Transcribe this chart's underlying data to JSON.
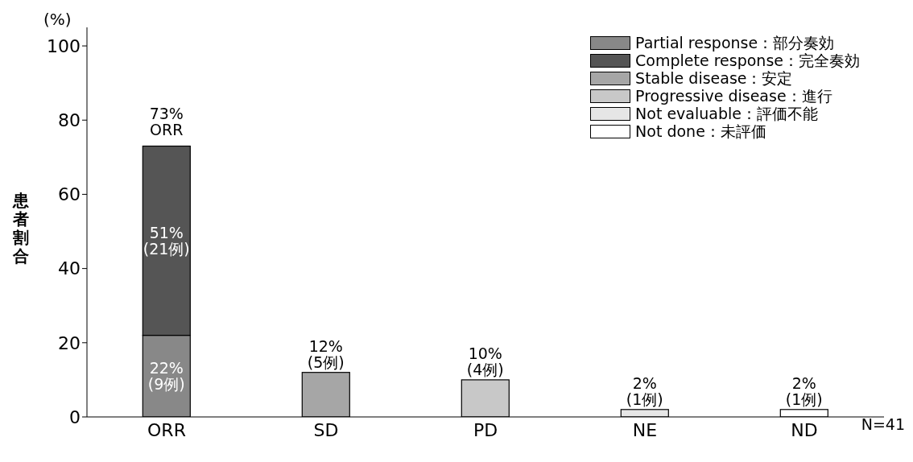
{
  "chart_data": {
    "type": "bar",
    "stacked": true,
    "ylabel": "患者割合",
    "categories": [
      "ORR",
      "SD",
      "PD",
      "NE",
      "ND"
    ],
    "series": [
      {
        "name": "Partial response：部分奏効",
        "color": "#888888",
        "values": [
          22,
          null,
          null,
          null,
          null
        ],
        "value_labels": [
          "22%\n(9例)",
          null,
          null,
          null,
          null
        ]
      },
      {
        "name": "Complete response：完全奏効",
        "color": "#555555",
        "values": [
          51,
          null,
          null,
          null,
          null
        ],
        "value_labels": [
          "51%\n(21例)",
          null,
          null,
          null,
          null
        ]
      },
      {
        "name": "Stable disease：安定",
        "color": "#a6a6a6",
        "values": [
          null,
          12,
          null,
          null,
          null
        ],
        "value_labels": [
          null,
          "12%\n(5例)",
          null,
          null,
          null
        ]
      },
      {
        "name": "Progressive disease：進行",
        "color": "#c8c8c8",
        "values": [
          null,
          null,
          10,
          null,
          null
        ],
        "value_labels": [
          null,
          null,
          "10%\n(4例)",
          null,
          null
        ]
      },
      {
        "name": "Not evaluable：評価不能",
        "color": "#e6e6e6",
        "values": [
          null,
          null,
          null,
          2,
          null
        ],
        "value_labels": [
          null,
          null,
          null,
          "2%\n(1例)",
          null
        ]
      },
      {
        "name": "Not done：未評価",
        "color": "#ffffff",
        "values": [
          null,
          null,
          null,
          null,
          2
        ],
        "value_labels": [
          null,
          null,
          null,
          null,
          "2%\n(1例)"
        ]
      }
    ],
    "totals": [
      "73%\nORR",
      null,
      null,
      null,
      null
    ],
    "ylim": [
      0,
      105
    ],
    "yticks": [
      0,
      20,
      40,
      60,
      80,
      100
    ],
    "grid": false,
    "legend": "top right",
    "annotations": [
      "(%)",
      "N=41"
    ]
  }
}
